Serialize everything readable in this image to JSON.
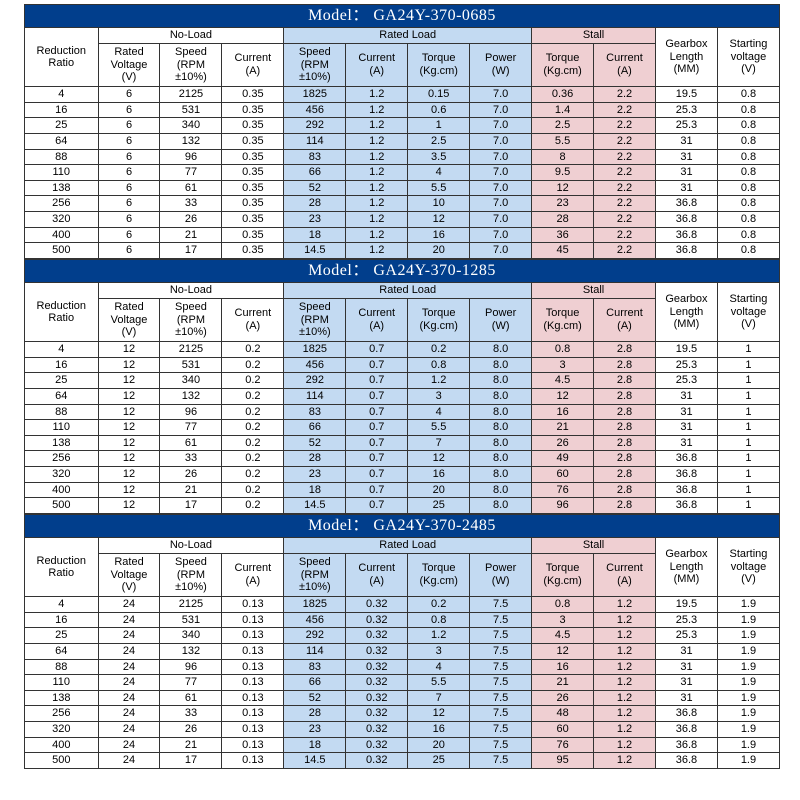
{
  "colors": {
    "model_bg": "#013e8c",
    "model_fg": "#ffffff",
    "blue_section": "#c3daf2",
    "pink_section": "#efcfd2",
    "white_section": "#ffffff",
    "border": "#333333"
  },
  "header_groups": {
    "noload": "No-Load",
    "rated": "Rated Load",
    "stall": "Stall"
  },
  "columns": [
    {
      "key": "ratio",
      "label": "Reduction\nRatio",
      "color": "white"
    },
    {
      "key": "rated_v",
      "label": "Rated\nVoltage\n(V)",
      "color": "white"
    },
    {
      "key": "nl_speed",
      "label": "Speed\n(RPM\n±10%)",
      "color": "white"
    },
    {
      "key": "nl_current",
      "label": "Current\n(A)",
      "color": "white"
    },
    {
      "key": "rl_speed",
      "label": "Speed\n(RPM\n±10%)",
      "color": "blue"
    },
    {
      "key": "rl_current",
      "label": "Current\n(A)",
      "color": "blue"
    },
    {
      "key": "rl_torque",
      "label": "Torque\n(Kg.cm)",
      "color": "blue"
    },
    {
      "key": "rl_power",
      "label": "Power\n(W)",
      "color": "blue"
    },
    {
      "key": "st_torque",
      "label": "Torque\n(Kg.cm)",
      "color": "pink"
    },
    {
      "key": "st_current",
      "label": "Current\n(A)",
      "color": "pink"
    },
    {
      "key": "gearbox",
      "label": "Gearbox\nLength\n(MM)",
      "color": "white"
    },
    {
      "key": "start_v",
      "label": "Starting\nvoltage\n(V)",
      "color": "white"
    }
  ],
  "tables": [
    {
      "model": "Model： GA24Y-370-0685",
      "rows": [
        [
          "4",
          "6",
          "2125",
          "0.35",
          "1825",
          "1.2",
          "0.15",
          "7.0",
          "0.36",
          "2.2",
          "19.5",
          "0.8"
        ],
        [
          "16",
          "6",
          "531",
          "0.35",
          "456",
          "1.2",
          "0.6",
          "7.0",
          "1.4",
          "2.2",
          "25.3",
          "0.8"
        ],
        [
          "25",
          "6",
          "340",
          "0.35",
          "292",
          "1.2",
          "1",
          "7.0",
          "2.5",
          "2.2",
          "25.3",
          "0.8"
        ],
        [
          "64",
          "6",
          "132",
          "0.35",
          "114",
          "1.2",
          "2.5",
          "7.0",
          "5.5",
          "2.2",
          "31",
          "0.8"
        ],
        [
          "88",
          "6",
          "96",
          "0.35",
          "83",
          "1.2",
          "3.5",
          "7.0",
          "8",
          "2.2",
          "31",
          "0.8"
        ],
        [
          "110",
          "6",
          "77",
          "0.35",
          "66",
          "1.2",
          "4",
          "7.0",
          "9.5",
          "2.2",
          "31",
          "0.8"
        ],
        [
          "138",
          "6",
          "61",
          "0.35",
          "52",
          "1.2",
          "5.5",
          "7.0",
          "12",
          "2.2",
          "31",
          "0.8"
        ],
        [
          "256",
          "6",
          "33",
          "0.35",
          "28",
          "1.2",
          "10",
          "7.0",
          "23",
          "2.2",
          "36.8",
          "0.8"
        ],
        [
          "320",
          "6",
          "26",
          "0.35",
          "23",
          "1.2",
          "12",
          "7.0",
          "28",
          "2.2",
          "36.8",
          "0.8"
        ],
        [
          "400",
          "6",
          "21",
          "0.35",
          "18",
          "1.2",
          "16",
          "7.0",
          "36",
          "2.2",
          "36.8",
          "0.8"
        ],
        [
          "500",
          "6",
          "17",
          "0.35",
          "14.5",
          "1.2",
          "20",
          "7.0",
          "45",
          "2.2",
          "36.8",
          "0.8"
        ]
      ]
    },
    {
      "model": "Model： GA24Y-370-1285",
      "rows": [
        [
          "4",
          "12",
          "2125",
          "0.2",
          "1825",
          "0.7",
          "0.2",
          "8.0",
          "0.8",
          "2.8",
          "19.5",
          "1"
        ],
        [
          "16",
          "12",
          "531",
          "0.2",
          "456",
          "0.7",
          "0.8",
          "8.0",
          "3",
          "2.8",
          "25.3",
          "1"
        ],
        [
          "25",
          "12",
          "340",
          "0.2",
          "292",
          "0.7",
          "1.2",
          "8.0",
          "4.5",
          "2.8",
          "25.3",
          "1"
        ],
        [
          "64",
          "12",
          "132",
          "0.2",
          "114",
          "0.7",
          "3",
          "8.0",
          "12",
          "2.8",
          "31",
          "1"
        ],
        [
          "88",
          "12",
          "96",
          "0.2",
          "83",
          "0.7",
          "4",
          "8.0",
          "16",
          "2.8",
          "31",
          "1"
        ],
        [
          "110",
          "12",
          "77",
          "0.2",
          "66",
          "0.7",
          "5.5",
          "8.0",
          "21",
          "2.8",
          "31",
          "1"
        ],
        [
          "138",
          "12",
          "61",
          "0.2",
          "52",
          "0.7",
          "7",
          "8.0",
          "26",
          "2.8",
          "31",
          "1"
        ],
        [
          "256",
          "12",
          "33",
          "0.2",
          "28",
          "0.7",
          "12",
          "8.0",
          "49",
          "2.8",
          "36.8",
          "1"
        ],
        [
          "320",
          "12",
          "26",
          "0.2",
          "23",
          "0.7",
          "16",
          "8.0",
          "60",
          "2.8",
          "36.8",
          "1"
        ],
        [
          "400",
          "12",
          "21",
          "0.2",
          "18",
          "0.7",
          "20",
          "8.0",
          "76",
          "2.8",
          "36.8",
          "1"
        ],
        [
          "500",
          "12",
          "17",
          "0.2",
          "14.5",
          "0.7",
          "25",
          "8.0",
          "96",
          "2.8",
          "36.8",
          "1"
        ]
      ]
    },
    {
      "model": "Model： GA24Y-370-2485",
      "rows": [
        [
          "4",
          "24",
          "2125",
          "0.13",
          "1825",
          "0.32",
          "0.2",
          "7.5",
          "0.8",
          "1.2",
          "19.5",
          "1.9"
        ],
        [
          "16",
          "24",
          "531",
          "0.13",
          "456",
          "0.32",
          "0.8",
          "7.5",
          "3",
          "1.2",
          "25.3",
          "1.9"
        ],
        [
          "25",
          "24",
          "340",
          "0.13",
          "292",
          "0.32",
          "1.2",
          "7.5",
          "4.5",
          "1.2",
          "25.3",
          "1.9"
        ],
        [
          "64",
          "24",
          "132",
          "0.13",
          "114",
          "0.32",
          "3",
          "7.5",
          "12",
          "1.2",
          "31",
          "1.9"
        ],
        [
          "88",
          "24",
          "96",
          "0.13",
          "83",
          "0.32",
          "4",
          "7.5",
          "16",
          "1.2",
          "31",
          "1.9"
        ],
        [
          "110",
          "24",
          "77",
          "0.13",
          "66",
          "0.32",
          "5.5",
          "7.5",
          "21",
          "1.2",
          "31",
          "1.9"
        ],
        [
          "138",
          "24",
          "61",
          "0.13",
          "52",
          "0.32",
          "7",
          "7.5",
          "26",
          "1.2",
          "31",
          "1.9"
        ],
        [
          "256",
          "24",
          "33",
          "0.13",
          "28",
          "0.32",
          "12",
          "7.5",
          "48",
          "1.2",
          "36.8",
          "1.9"
        ],
        [
          "320",
          "24",
          "26",
          "0.13",
          "23",
          "0.32",
          "16",
          "7.5",
          "60",
          "1.2",
          "36.8",
          "1.9"
        ],
        [
          "400",
          "24",
          "21",
          "0.13",
          "18",
          "0.32",
          "20",
          "7.5",
          "76",
          "1.2",
          "36.8",
          "1.9"
        ],
        [
          "500",
          "24",
          "17",
          "0.13",
          "14.5",
          "0.32",
          "25",
          "7.5",
          "95",
          "1.2",
          "36.8",
          "1.9"
        ]
      ]
    }
  ]
}
